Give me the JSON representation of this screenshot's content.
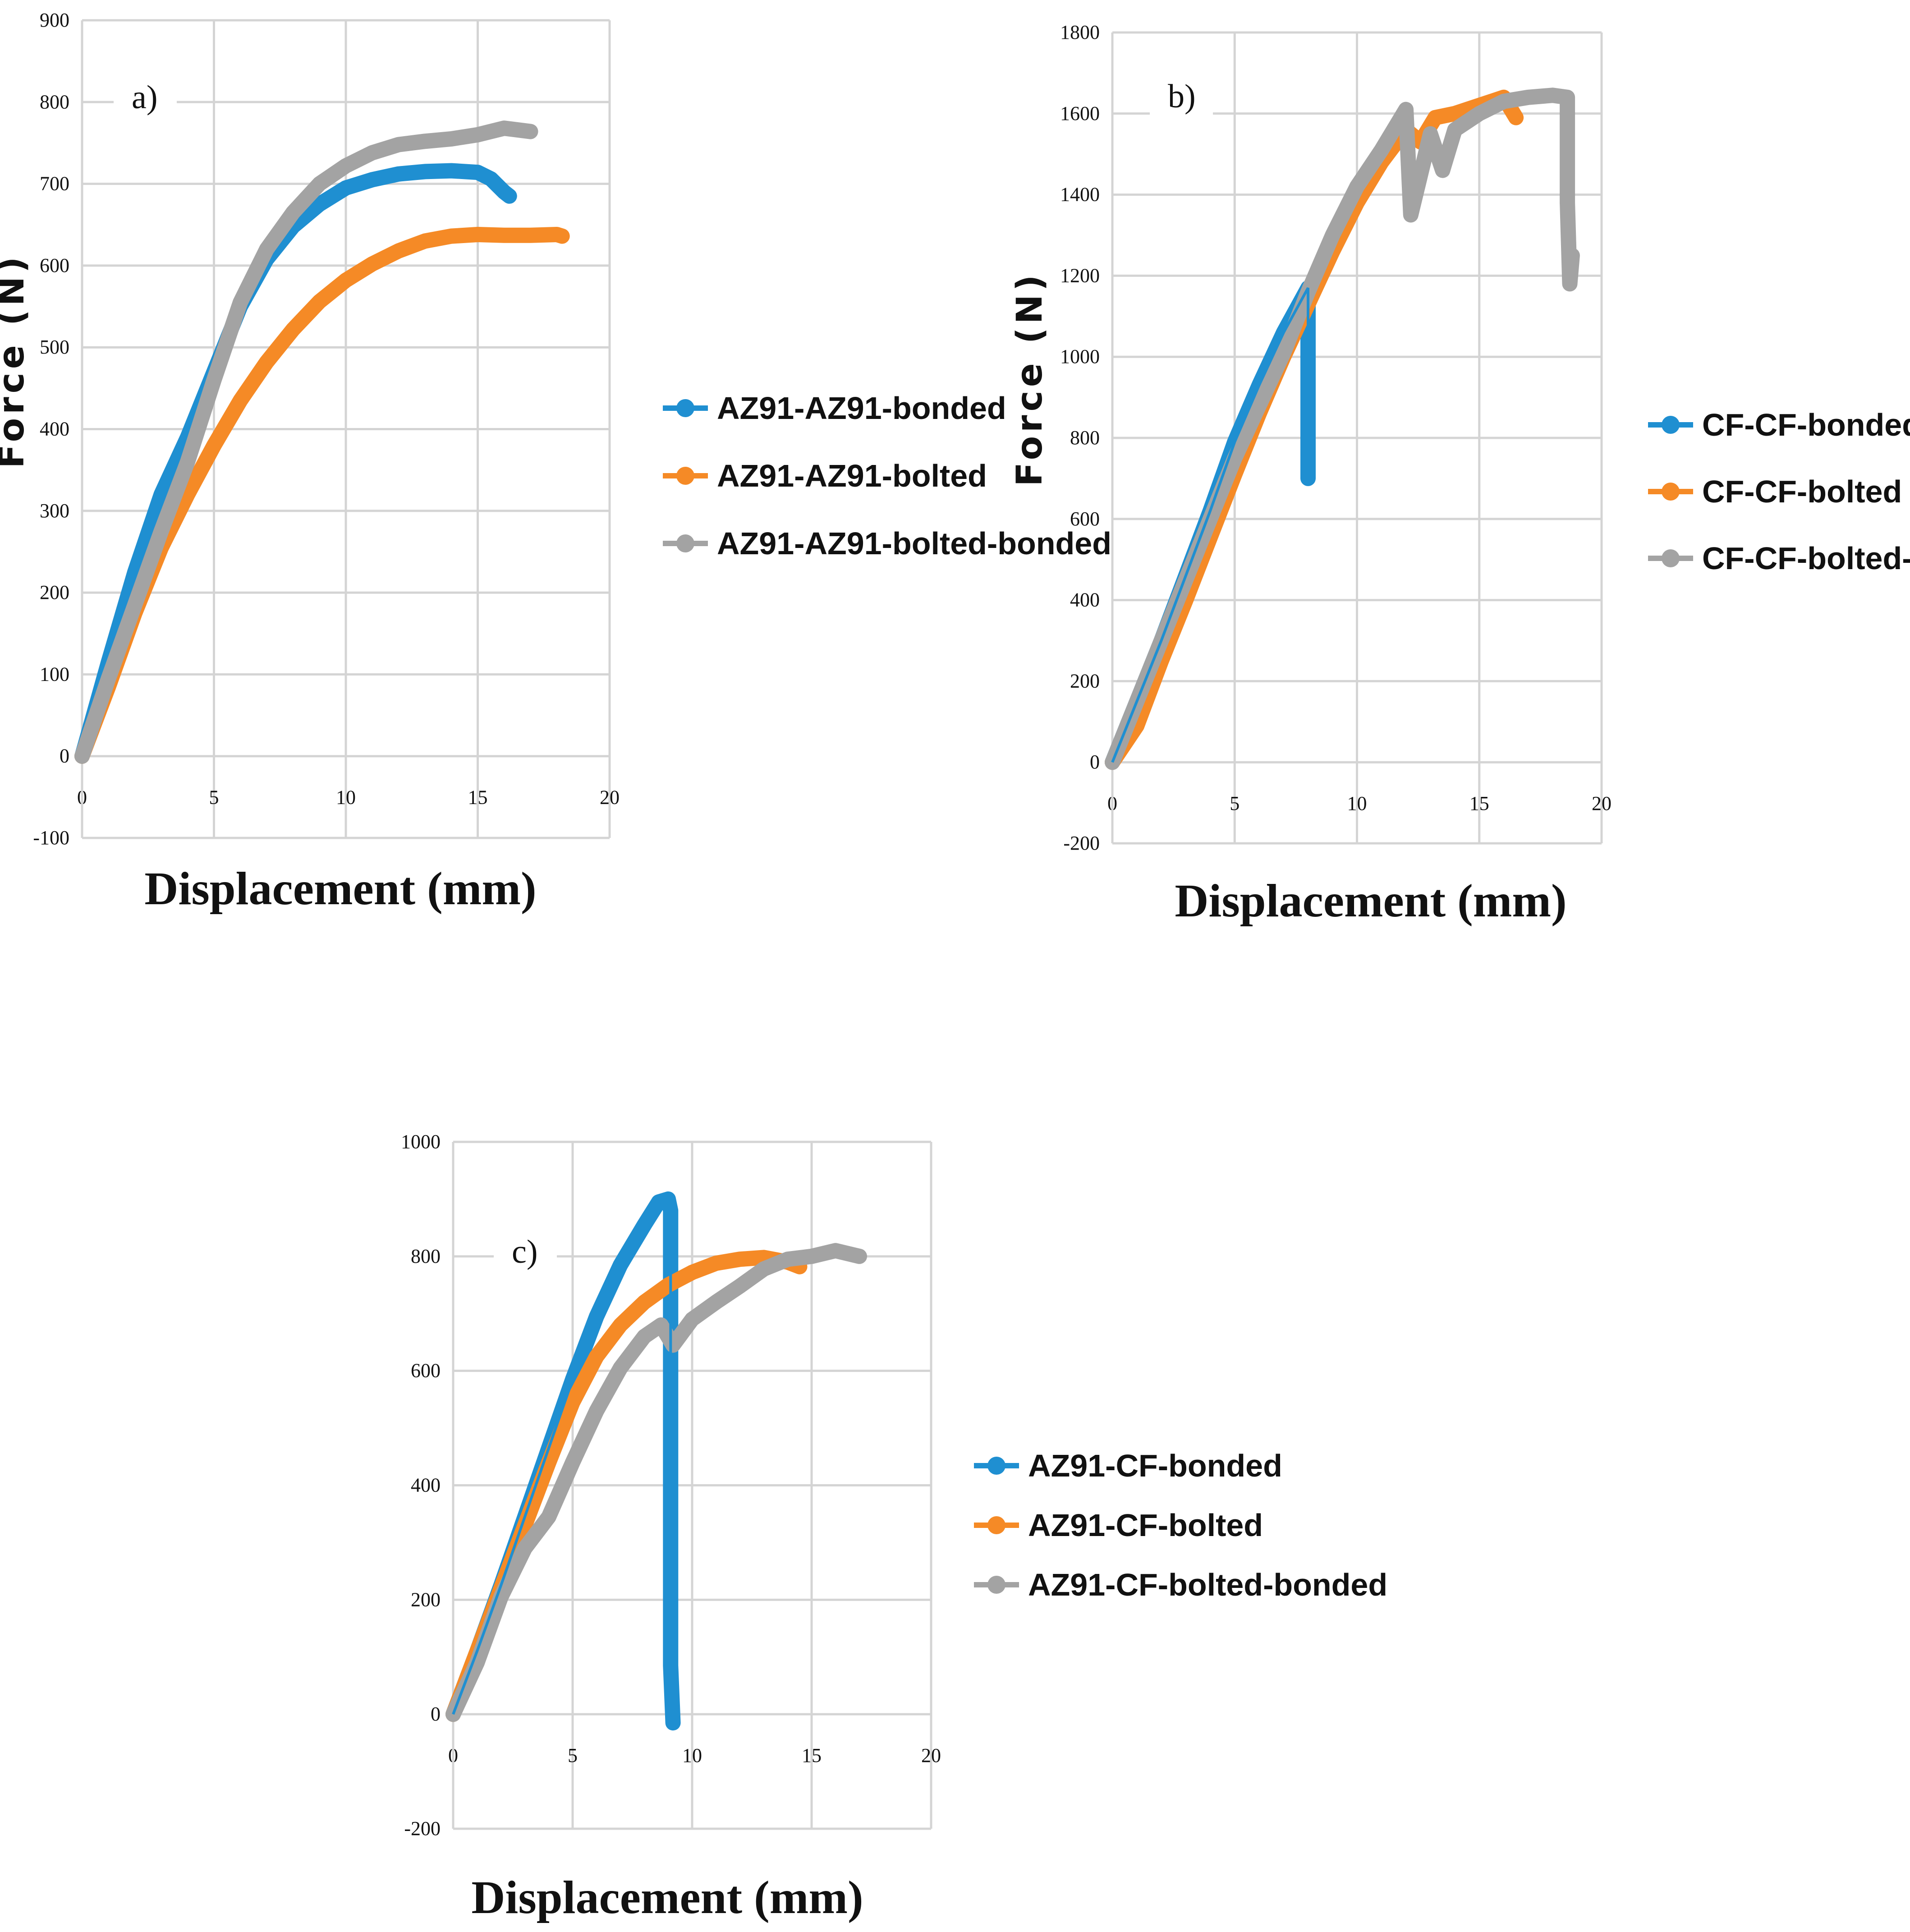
{
  "colors": {
    "bonded": "#1f8fd1",
    "bolted": "#f58a26",
    "bolted_bonded": "#a3a3a3"
  },
  "chart_data": [
    {
      "type": "line",
      "panel_label": "a)",
      "xlabel": "Displacement (mm)",
      "ylabel": "Force (N)",
      "xlim": [
        0,
        20
      ],
      "ylim": [
        -100,
        900
      ],
      "xticks": [
        0,
        5,
        10,
        15,
        20
      ],
      "yticks": [
        -100,
        0,
        100,
        200,
        300,
        400,
        500,
        600,
        700,
        800,
        900
      ],
      "grid": true,
      "legend_position": "right",
      "series": [
        {
          "name": "AZ91-AZ91-bonded",
          "color_key": "bonded",
          "points": [
            [
              0,
              0
            ],
            [
              1,
              115
            ],
            [
              2,
              225
            ],
            [
              3,
              320
            ],
            [
              4,
              390
            ],
            [
              5,
              470
            ],
            [
              6,
              550
            ],
            [
              7,
              608
            ],
            [
              8,
              648
            ],
            [
              9,
              675
            ],
            [
              10,
              695
            ],
            [
              11,
              705
            ],
            [
              12,
              712
            ],
            [
              13,
              715
            ],
            [
              14,
              716
            ],
            [
              15,
              714
            ],
            [
              15.5,
              706
            ],
            [
              16,
              690
            ],
            [
              16.2,
              685
            ]
          ]
        },
        {
          "name": "AZ91-AZ91-bolted",
          "color_key": "bolted",
          "points": [
            [
              0,
              0
            ],
            [
              1,
              85
            ],
            [
              2,
              175
            ],
            [
              3,
              255
            ],
            [
              4,
              320
            ],
            [
              5,
              380
            ],
            [
              6,
              435
            ],
            [
              7,
              482
            ],
            [
              8,
              522
            ],
            [
              9,
              556
            ],
            [
              10,
              582
            ],
            [
              11,
              602
            ],
            [
              12,
              618
            ],
            [
              13,
              630
            ],
            [
              14,
              636
            ],
            [
              15,
              638
            ],
            [
              16,
              637
            ],
            [
              17,
              637
            ],
            [
              18,
              638
            ],
            [
              18.2,
              636
            ]
          ]
        },
        {
          "name": "AZ91-AZ91-bolted-bonded",
          "color_key": "bolted_bonded",
          "points": [
            [
              0,
              0
            ],
            [
              1,
              95
            ],
            [
              2,
              185
            ],
            [
              3,
              275
            ],
            [
              4,
              360
            ],
            [
              5,
              460
            ],
            [
              6,
              555
            ],
            [
              7,
              620
            ],
            [
              8,
              665
            ],
            [
              9,
              700
            ],
            [
              10,
              722
            ],
            [
              11,
              738
            ],
            [
              12,
              748
            ],
            [
              13,
              752
            ],
            [
              14,
              755
            ],
            [
              15,
              760
            ],
            [
              16,
              768
            ],
            [
              17,
              764
            ]
          ]
        }
      ]
    },
    {
      "type": "line",
      "panel_label": "b)",
      "xlabel": "Displacement (mm)",
      "ylabel": "Force (N)",
      "xlim": [
        0,
        20
      ],
      "ylim": [
        -200,
        1800
      ],
      "xticks": [
        0,
        5,
        10,
        15,
        20
      ],
      "yticks": [
        -200,
        0,
        200,
        400,
        600,
        800,
        1000,
        1200,
        1400,
        1600,
        1800
      ],
      "grid": true,
      "legend_position": "right",
      "series": [
        {
          "name": "CF-CF-bonded",
          "color_key": "bonded",
          "points": [
            [
              0,
              0
            ],
            [
              1,
              150
            ],
            [
              2,
              300
            ],
            [
              3,
              460
            ],
            [
              4,
              620
            ],
            [
              5,
              790
            ],
            [
              6,
              930
            ],
            [
              7,
              1060
            ],
            [
              8,
              1170
            ],
            [
              8,
              760
            ],
            [
              8,
              700
            ]
          ]
        },
        {
          "name": "CF-CF-bolted",
          "color_key": "bolted",
          "points": [
            [
              0,
              0
            ],
            [
              1,
              90
            ],
            [
              2,
              250
            ],
            [
              3,
              400
            ],
            [
              4,
              555
            ],
            [
              5,
              710
            ],
            [
              6,
              860
            ],
            [
              7,
              1000
            ],
            [
              8,
              1130
            ],
            [
              9,
              1260
            ],
            [
              10,
              1380
            ],
            [
              11,
              1480
            ],
            [
              12,
              1560
            ],
            [
              12.6,
              1530
            ],
            [
              13.2,
              1590
            ],
            [
              14,
              1600
            ],
            [
              15,
              1620
            ],
            [
              16,
              1640
            ],
            [
              16.5,
              1590
            ]
          ]
        },
        {
          "name": "CF-CF-bolted-bonded",
          "color_key": "bolted_bonded",
          "points": [
            [
              0,
              0
            ],
            [
              1,
              150
            ],
            [
              2,
              300
            ],
            [
              3,
              450
            ],
            [
              4,
              600
            ],
            [
              5,
              750
            ],
            [
              6,
              880
            ],
            [
              7,
              1010
            ],
            [
              8,
              1160
            ],
            [
              9,
              1300
            ],
            [
              10,
              1420
            ],
            [
              11,
              1510
            ],
            [
              12,
              1610
            ],
            [
              12.2,
              1350
            ],
            [
              13,
              1550
            ],
            [
              13.5,
              1460
            ],
            [
              14,
              1560
            ],
            [
              15,
              1600
            ],
            [
              16,
              1630
            ],
            [
              17,
              1640
            ],
            [
              18,
              1645
            ],
            [
              18.6,
              1640
            ],
            [
              18.6,
              1380
            ],
            [
              18.7,
              1180
            ],
            [
              18.8,
              1250
            ]
          ]
        }
      ]
    },
    {
      "type": "line",
      "panel_label": "c)",
      "xlabel": "Displacement (mm)",
      "ylabel": "",
      "xlim": [
        0,
        20
      ],
      "ylim": [
        -200,
        1000
      ],
      "xticks": [
        0,
        5,
        10,
        15,
        20
      ],
      "yticks": [
        -200,
        0,
        200,
        400,
        600,
        800,
        1000
      ],
      "grid": true,
      "legend_position": "right",
      "series": [
        {
          "name": "AZ91-CF-bonded",
          "color_key": "bonded",
          "points": [
            [
              0,
              0
            ],
            [
              1,
              110
            ],
            [
              2,
              225
            ],
            [
              3,
              345
            ],
            [
              4,
              465
            ],
            [
              5,
              585
            ],
            [
              6,
              695
            ],
            [
              7,
              785
            ],
            [
              8,
              855
            ],
            [
              8.6,
              895
            ],
            [
              9,
              900
            ],
            [
              9.1,
              880
            ],
            [
              9.1,
              615
            ],
            [
              9.1,
              340
            ],
            [
              9.1,
              85
            ],
            [
              9.2,
              -15
            ]
          ]
        },
        {
          "name": "AZ91-CF-bolted",
          "color_key": "bolted",
          "points": [
            [
              0,
              0
            ],
            [
              1,
              110
            ],
            [
              2,
              220
            ],
            [
              3,
              330
            ],
            [
              4,
              440
            ],
            [
              5,
              545
            ],
            [
              6,
              625
            ],
            [
              7,
              680
            ],
            [
              8,
              720
            ],
            [
              9,
              750
            ],
            [
              10,
              772
            ],
            [
              11,
              788
            ],
            [
              12,
              795
            ],
            [
              13,
              798
            ],
            [
              14,
              790
            ],
            [
              14.5,
              782
            ]
          ]
        },
        {
          "name": "AZ91-CF-bolted-bonded",
          "color_key": "bolted_bonded",
          "points": [
            [
              0,
              0
            ],
            [
              1,
              90
            ],
            [
              2,
              205
            ],
            [
              3,
              290
            ],
            [
              4,
              345
            ],
            [
              5,
              440
            ],
            [
              6,
              530
            ],
            [
              7,
              605
            ],
            [
              8,
              660
            ],
            [
              8.7,
              680
            ],
            [
              9.2,
              645
            ],
            [
              10,
              690
            ],
            [
              11,
              720
            ],
            [
              12,
              748
            ],
            [
              13,
              778
            ],
            [
              14,
              795
            ],
            [
              15,
              800
            ],
            [
              16,
              810
            ],
            [
              17,
              800
            ]
          ]
        }
      ]
    }
  ]
}
